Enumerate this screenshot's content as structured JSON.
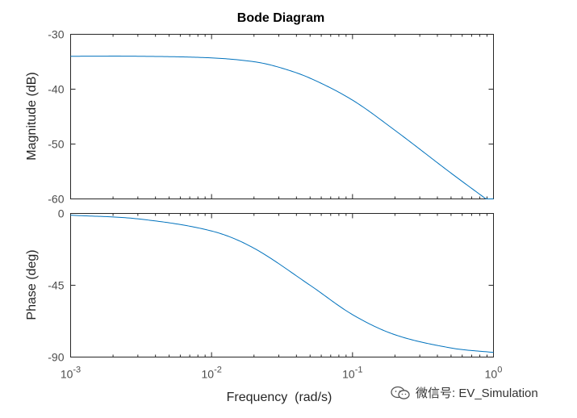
{
  "chart_data": [
    {
      "type": "line",
      "title": "Bode Diagram",
      "xlabel": "",
      "ylabel": "Magnitude (dB)",
      "xscale": "log",
      "xlim": [
        0.001,
        1
      ],
      "ylim": [
        -60,
        -30
      ],
      "yticks": [
        -30,
        -40,
        -50,
        -60
      ],
      "grid": false,
      "series": [
        {
          "color": "#0072BD",
          "x": [
            0.001,
            0.003,
            0.01,
            0.02,
            0.03,
            0.05,
            0.1,
            0.2,
            0.5,
            1.0
          ],
          "values": [
            -34.0,
            -34.0,
            -34.3,
            -35.0,
            -36.0,
            -38.0,
            -42.0,
            -47.5,
            -55.3,
            -61.0
          ]
        }
      ]
    },
    {
      "type": "line",
      "xlabel": "Frequency  (rad/s)",
      "ylabel": "Phase (deg)",
      "xscale": "log",
      "xlim": [
        0.001,
        1
      ],
      "ylim": [
        -90,
        0
      ],
      "yticks": [
        0,
        -45,
        -90
      ],
      "xticks": [
        "10^-3",
        "10^-2",
        "10^-1",
        "10^0"
      ],
      "grid": false,
      "series": [
        {
          "color": "#0072BD",
          "x": [
            0.001,
            0.003,
            0.01,
            0.02,
            0.05,
            0.1,
            0.2,
            0.5,
            1.0
          ],
          "values": [
            -1.1,
            -3.4,
            -11.0,
            -21.8,
            -45.0,
            -63.4,
            -76.0,
            -84.3,
            -87.1
          ]
        }
      ]
    }
  ],
  "watermark": {
    "text": "微信号: EV_Simulation",
    "icon": "wechat-logo-icon"
  }
}
